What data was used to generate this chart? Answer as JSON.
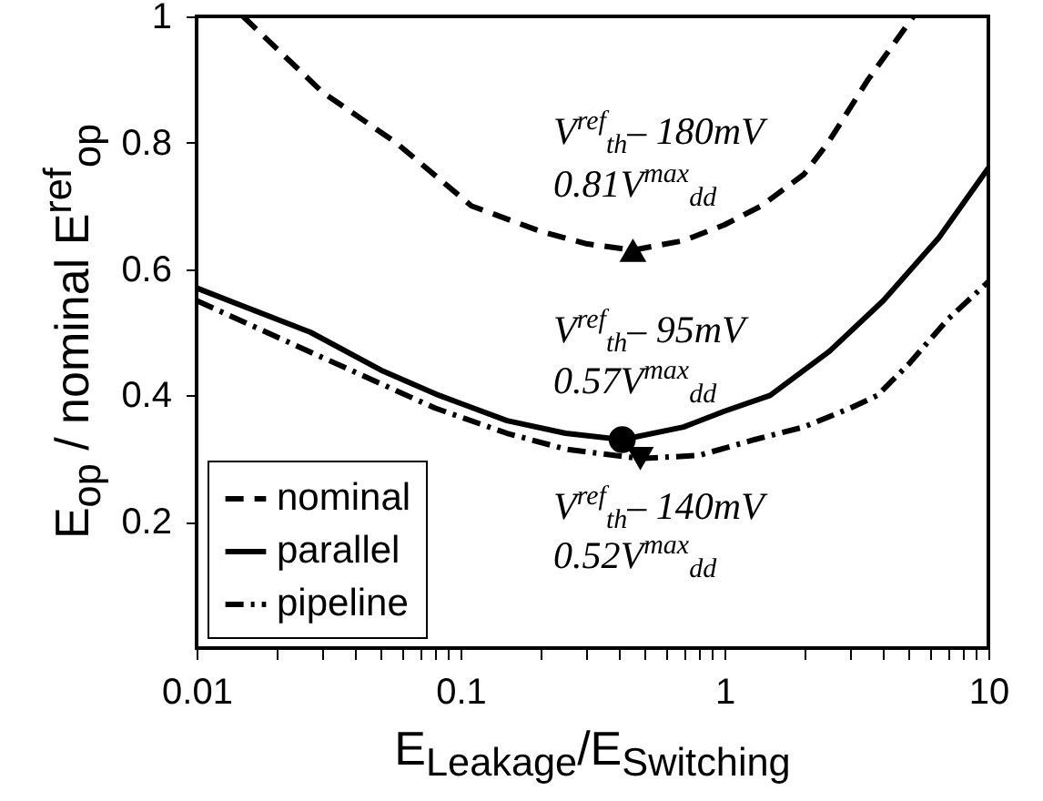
{
  "chart_data": {
    "type": "line",
    "xlabel": "E$_{Leakage}$/E$_{Switching}$",
    "ylabel": "E$_{op}$ / nominal E$^{ref}$$_{op}$",
    "log": "x",
    "xlim": [
      0.01,
      10
    ],
    "xticks": [
      0.01,
      {
        "value": 0.02,
        "label": null
      },
      {
        "value": 0.03,
        "label": null
      },
      {
        "value": 0.04,
        "label": null
      },
      {
        "value": 0.05,
        "label": null
      },
      {
        "value": 0.06,
        "label": null
      },
      {
        "value": 0.07,
        "label": null
      },
      {
        "value": 0.08,
        "label": null
      },
      {
        "value": 0.09,
        "label": null
      },
      0.1,
      {
        "value": 0.2,
        "label": null
      },
      {
        "value": 0.3,
        "label": null
      },
      {
        "value": 0.4,
        "label": null
      },
      {
        "value": 0.5,
        "label": null
      },
      {
        "value": 0.6,
        "label": null
      },
      {
        "value": 0.7,
        "label": null
      },
      {
        "value": 0.8,
        "label": null
      },
      {
        "value": 0.9,
        "label": null
      },
      1,
      {
        "value": 2,
        "label": null
      },
      {
        "value": 3,
        "label": null
      },
      {
        "value": 4,
        "label": null
      },
      {
        "value": 5,
        "label": null
      },
      {
        "value": 6,
        "label": null
      },
      {
        "value": 7,
        "label": null
      },
      {
        "value": 8,
        "label": null
      },
      {
        "value": 9,
        "label": null
      },
      10
    ],
    "ylim": [
      0,
      1
    ],
    "yticks": [
      0.2,
      0.4,
      0.6,
      0.8,
      1
    ],
    "grid": false,
    "legend": "bottom left",
    "series": [
      {
        "name": "nominal",
        "color": "#000000",
        "line_style": "dashed",
        "x": [
          0.015,
          0.02,
          0.03,
          0.057,
          0.11,
          0.2,
          0.3,
          0.45,
          0.7,
          1.0,
          1.38,
          2,
          2.47,
          3.5,
          5.2
        ],
        "values": [
          1.0,
          0.95,
          0.88,
          0.8,
          0.7,
          0.66,
          0.64,
          0.63,
          0.645,
          0.67,
          0.7,
          0.75,
          0.8,
          0.9,
          1.0
        ]
      },
      {
        "name": "parallel",
        "color": "#000000",
        "line_style": "solid",
        "x": [
          0.01,
          0.027,
          0.05,
          0.083,
          0.15,
          0.25,
          0.41,
          0.7,
          1.0,
          1.49,
          2.5,
          4,
          6.5,
          10
        ],
        "values": [
          0.57,
          0.5,
          0.44,
          0.4,
          0.36,
          0.34,
          0.33,
          0.35,
          0.375,
          0.4,
          0.47,
          0.55,
          0.65,
          0.76
        ]
      },
      {
        "name": "pipeline",
        "color": "#000000",
        "line_style": "dashdot",
        "x": [
          0.01,
          0.03,
          0.08,
          0.15,
          0.25,
          0.48,
          0.8,
          1.3,
          2,
          3,
          3.8,
          5,
          7,
          10
        ],
        "values": [
          0.55,
          0.46,
          0.38,
          0.34,
          0.315,
          0.3,
          0.305,
          0.33,
          0.35,
          0.38,
          0.4,
          0.45,
          0.52,
          0.58
        ]
      },
      {
        "type": "scatter",
        "color": "#000000",
        "marker": "triangle",
        "x": [
          0.45
        ],
        "values": [
          0.63
        ]
      },
      {
        "type": "scatter",
        "color": "#000000",
        "marker": "circle",
        "x": [
          0.41
        ],
        "values": [
          0.33
        ]
      },
      {
        "type": "scatter",
        "color": "#000000",
        "marker": "triangle-down",
        "x": [
          0.48
        ],
        "values": [
          0.3
        ]
      }
    ],
    "annotations": [
      "V$^{ref}$$_{th}$– 180mV",
      "0.81V$^{max}$$_{dd}$",
      "V$^{ref}$$_{th}$– 95mV",
      "0.57V$^{max}$$_{dd}$",
      "V$^{ref}$$_{th}$– 140mV",
      "0.52V$^{max}$$_{dd}$"
    ]
  }
}
